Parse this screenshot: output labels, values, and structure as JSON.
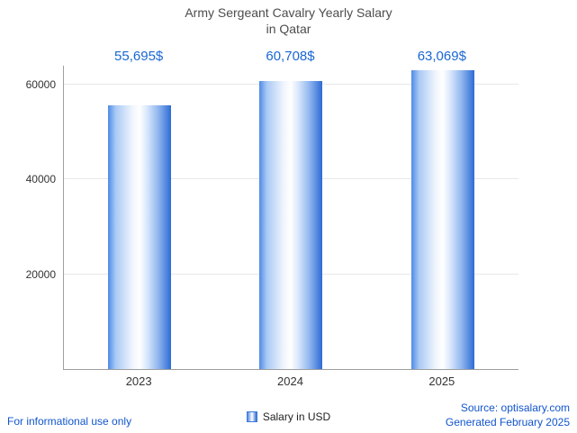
{
  "title": {
    "line1": "Army Sergeant Cavalry Yearly Salary",
    "line2": "in Qatar"
  },
  "chart_data": {
    "type": "bar",
    "title": "Army Sergeant Cavalry Yearly Salary in Qatar",
    "categories": [
      "2023",
      "2024",
      "2025"
    ],
    "values": [
      55695,
      60708,
      63069
    ],
    "value_labels": [
      "55,695$",
      "60,708$",
      "63,069$"
    ],
    "xlabel": "",
    "ylabel": "",
    "ylim": [
      0,
      64000
    ],
    "yticks": [
      20000,
      40000,
      60000
    ],
    "ytick_labels": [
      "20000",
      "40000",
      "60000"
    ],
    "grid": true,
    "legend_position": "bottom",
    "series_color": "#4f8ae6"
  },
  "legend": {
    "label": "Salary in USD"
  },
  "footer": {
    "left": "For informational use only",
    "source": "Source: optisalary.com",
    "generated": "Generated February 2025"
  },
  "colors": {
    "value_label_text": "#1967d2",
    "footer_text": "#1155cc",
    "title_text": "#4d4d4d",
    "axis_line": "#9e9e9e",
    "gridline": "#e8e8e8",
    "bar_edge_dark": "#2e6bd4",
    "bar_center": "#ffffff"
  }
}
